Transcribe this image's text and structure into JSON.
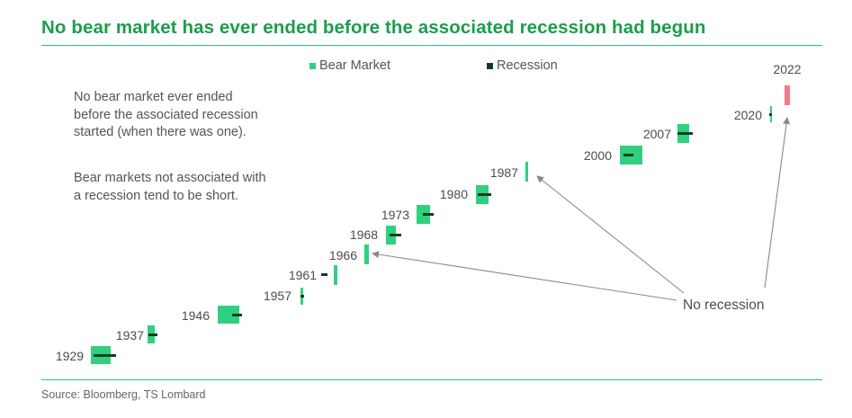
{
  "title": "No bear market has ever ended before the associated recession had begun",
  "source": "Source: Bloomberg, TS Lombard",
  "notes": {
    "p1": [
      "No bear market ever ended",
      "before the associated recession",
      "started (when there was one)."
    ],
    "p2": [
      "Bear markets not associated with",
      "a recession tend to be short."
    ]
  },
  "annotation": "No recession",
  "colors": {
    "bear_market": "#2fd07f",
    "recession": "#0f3d24",
    "current_bear": "#f07c8e",
    "title": "#1a9e4a",
    "arrow": "#8a8a8a"
  },
  "chart_data": {
    "type": "bar",
    "title": "No bear market has ever ended before the associated recession had begun",
    "legend": [
      "Bear Market",
      "Recession"
    ],
    "legend_position": "top",
    "grid": false,
    "categories": [
      "1929",
      "1937",
      "1946",
      "1957",
      "1961",
      "1966",
      "1968",
      "1973",
      "1980",
      "1987",
      "2000",
      "2007",
      "2020",
      "2022"
    ],
    "series": [
      {
        "name": "Bear Market",
        "values": [
          1,
          1,
          1,
          1,
          1,
          1,
          1,
          1,
          1,
          1,
          1,
          1,
          1,
          1
        ]
      },
      {
        "name": "Recession",
        "values": [
          1,
          1,
          1,
          1,
          1,
          0,
          1,
          1,
          1,
          0,
          1,
          1,
          1,
          0
        ]
      }
    ],
    "no_recession": [
      "1966",
      "1987",
      "2022"
    ],
    "ongoing": [
      "2022"
    ]
  }
}
